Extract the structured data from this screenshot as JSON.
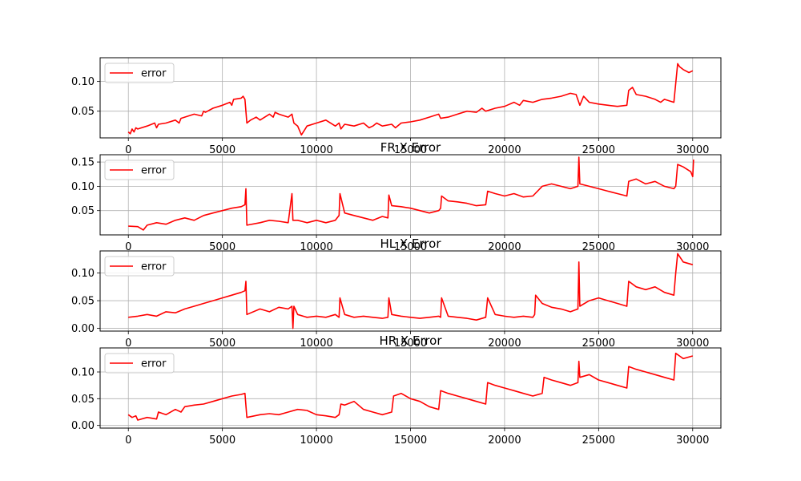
{
  "colors": {
    "series": "#ff0000",
    "grid": "#b0b0b0",
    "axes": "#000000",
    "legend_border": "#cccccc"
  },
  "chart_data": [
    {
      "type": "line",
      "title": "",
      "xlim": [
        -1500,
        31500
      ],
      "ylim": [
        0.005,
        0.14
      ],
      "xticks": [
        0,
        5000,
        10000,
        15000,
        20000,
        25000,
        30000
      ],
      "yticks": [
        0.05,
        0.1
      ],
      "ytick_labels": [
        "0.05",
        "0.10"
      ],
      "grid": true,
      "legend": {
        "placement": "upper-left",
        "entries": [
          "error"
        ]
      },
      "series": [
        {
          "name": "error",
          "x": [
            0,
            100,
            200,
            300,
            400,
            500,
            1000,
            1400,
            1500,
            1600,
            2000,
            2500,
            2700,
            2800,
            3000,
            3500,
            3900,
            4000,
            4100,
            4500,
            5000,
            5400,
            5500,
            5600,
            6000,
            6100,
            6200,
            6300,
            6500,
            6800,
            7000,
            7500,
            7700,
            7800,
            8000,
            8500,
            8700,
            8800,
            9000,
            9200,
            9400,
            9500,
            10000,
            10500,
            11000,
            11200,
            11300,
            11500,
            12000,
            12500,
            12800,
            13000,
            13200,
            13500,
            14000,
            14200,
            14500,
            15000,
            15500,
            16000,
            16500,
            16600,
            17000,
            17500,
            18000,
            18500,
            18800,
            19000,
            19500,
            20000,
            20500,
            20800,
            21000,
            21500,
            22000,
            22500,
            23000,
            23500,
            23800,
            24000,
            24200,
            24500,
            25000,
            25500,
            26000,
            26500,
            26600,
            26800,
            27000,
            27500,
            28000,
            28300,
            28500,
            29000,
            29200,
            29300,
            29500,
            29800,
            30000
          ],
          "y": [
            0.015,
            0.012,
            0.02,
            0.015,
            0.022,
            0.02,
            0.025,
            0.03,
            0.022,
            0.028,
            0.03,
            0.035,
            0.03,
            0.038,
            0.04,
            0.045,
            0.042,
            0.05,
            0.048,
            0.055,
            0.06,
            0.065,
            0.06,
            0.07,
            0.072,
            0.075,
            0.07,
            0.03,
            0.035,
            0.04,
            0.035,
            0.045,
            0.04,
            0.048,
            0.045,
            0.04,
            0.045,
            0.03,
            0.025,
            0.01,
            0.02,
            0.025,
            0.03,
            0.035,
            0.025,
            0.03,
            0.02,
            0.028,
            0.025,
            0.03,
            0.022,
            0.025,
            0.03,
            0.025,
            0.028,
            0.022,
            0.03,
            0.032,
            0.035,
            0.04,
            0.045,
            0.038,
            0.04,
            0.045,
            0.05,
            0.048,
            0.055,
            0.05,
            0.055,
            0.058,
            0.065,
            0.06,
            0.068,
            0.065,
            0.07,
            0.072,
            0.075,
            0.08,
            0.078,
            0.06,
            0.075,
            0.065,
            0.062,
            0.06,
            0.058,
            0.06,
            0.085,
            0.09,
            0.078,
            0.075,
            0.07,
            0.065,
            0.07,
            0.065,
            0.13,
            0.125,
            0.12,
            0.115,
            0.118
          ]
        }
      ]
    },
    {
      "type": "line",
      "title": "FR X Error",
      "xlim": [
        -1500,
        31500
      ],
      "ylim": [
        0.0,
        0.165
      ],
      "xticks": [
        0,
        5000,
        10000,
        15000,
        20000,
        25000,
        30000
      ],
      "yticks": [
        0.05,
        0.1,
        0.15
      ],
      "ytick_labels": [
        "0.05",
        "0.10",
        "0.15"
      ],
      "grid": true,
      "legend": {
        "placement": "upper-left",
        "entries": [
          "error"
        ]
      },
      "series": [
        {
          "name": "error",
          "x": [
            0,
            500,
            800,
            1000,
            1500,
            2000,
            2500,
            3000,
            3500,
            4000,
            4500,
            5000,
            5500,
            6000,
            6200,
            6250,
            6300,
            7000,
            7500,
            8000,
            8500,
            8700,
            8750,
            9000,
            9500,
            10000,
            10500,
            11000,
            11200,
            11250,
            11500,
            12000,
            12500,
            13000,
            13500,
            13800,
            13850,
            14000,
            14500,
            15000,
            15500,
            16000,
            16500,
            16600,
            16650,
            17000,
            17500,
            18000,
            18500,
            19000,
            19100,
            19500,
            20000,
            20500,
            21000,
            21500,
            22000,
            22500,
            23000,
            23500,
            23900,
            23950,
            24000,
            24500,
            25000,
            25500,
            26000,
            26500,
            26600,
            27000,
            27500,
            28000,
            28500,
            29000,
            29100,
            29200,
            29500,
            29900,
            30000,
            30050
          ],
          "y": [
            0.018,
            0.017,
            0.01,
            0.02,
            0.025,
            0.022,
            0.03,
            0.035,
            0.03,
            0.04,
            0.045,
            0.05,
            0.055,
            0.058,
            0.062,
            0.095,
            0.02,
            0.025,
            0.03,
            0.028,
            0.025,
            0.085,
            0.03,
            0.03,
            0.025,
            0.03,
            0.025,
            0.03,
            0.04,
            0.085,
            0.045,
            0.04,
            0.035,
            0.03,
            0.038,
            0.035,
            0.082,
            0.06,
            0.058,
            0.055,
            0.05,
            0.045,
            0.05,
            0.055,
            0.08,
            0.07,
            0.068,
            0.065,
            0.06,
            0.062,
            0.09,
            0.085,
            0.08,
            0.085,
            0.078,
            0.08,
            0.1,
            0.105,
            0.1,
            0.095,
            0.1,
            0.16,
            0.105,
            0.1,
            0.095,
            0.09,
            0.085,
            0.08,
            0.11,
            0.115,
            0.105,
            0.11,
            0.1,
            0.095,
            0.1,
            0.145,
            0.14,
            0.13,
            0.12,
            0.155
          ]
        }
      ]
    },
    {
      "type": "line",
      "title": "HL X Error",
      "xlim": [
        -1500,
        31500
      ],
      "ylim": [
        -0.005,
        0.14
      ],
      "xticks": [
        0,
        5000,
        10000,
        15000,
        20000,
        25000,
        30000
      ],
      "yticks": [
        0.0,
        0.05,
        0.1
      ],
      "ytick_labels": [
        "0.00",
        "0.05",
        "0.10"
      ],
      "grid": true,
      "legend": {
        "placement": "upper-left",
        "entries": [
          "error"
        ]
      },
      "series": [
        {
          "name": "error",
          "x": [
            0,
            500,
            1000,
            1500,
            2000,
            2500,
            3000,
            3500,
            4000,
            4500,
            5000,
            5500,
            6000,
            6200,
            6250,
            6300,
            7000,
            7500,
            8000,
            8500,
            8700,
            8750,
            8800,
            9000,
            9500,
            10000,
            10500,
            11000,
            11200,
            11250,
            11500,
            12000,
            12500,
            13000,
            13500,
            13800,
            13850,
            14000,
            14500,
            15000,
            15500,
            16000,
            16500,
            16600,
            16650,
            17000,
            17500,
            18000,
            18500,
            19000,
            19100,
            19500,
            20000,
            20500,
            21000,
            21500,
            21600,
            21650,
            22000,
            22500,
            23000,
            23500,
            23900,
            23950,
            24000,
            24500,
            25000,
            25500,
            26000,
            26500,
            26600,
            27000,
            27500,
            28000,
            28500,
            29000,
            29100,
            29200,
            29500,
            30000
          ],
          "y": [
            0.02,
            0.022,
            0.025,
            0.022,
            0.03,
            0.028,
            0.035,
            0.04,
            0.045,
            0.05,
            0.055,
            0.06,
            0.065,
            0.068,
            0.085,
            0.025,
            0.035,
            0.03,
            0.038,
            0.035,
            0.04,
            0.0,
            0.04,
            0.025,
            0.02,
            0.022,
            0.02,
            0.025,
            0.02,
            0.055,
            0.025,
            0.02,
            0.022,
            0.02,
            0.018,
            0.02,
            0.055,
            0.025,
            0.022,
            0.02,
            0.018,
            0.02,
            0.022,
            0.02,
            0.055,
            0.022,
            0.02,
            0.018,
            0.015,
            0.02,
            0.055,
            0.025,
            0.022,
            0.02,
            0.022,
            0.02,
            0.025,
            0.06,
            0.045,
            0.038,
            0.035,
            0.03,
            0.035,
            0.12,
            0.04,
            0.05,
            0.055,
            0.05,
            0.045,
            0.04,
            0.085,
            0.075,
            0.07,
            0.075,
            0.065,
            0.06,
            0.1,
            0.135,
            0.12,
            0.115
          ]
        }
      ]
    },
    {
      "type": "line",
      "title": "HR X Error",
      "xlim": [
        -1500,
        31500
      ],
      "ylim": [
        -0.005,
        0.145
      ],
      "xticks": [
        0,
        5000,
        10000,
        15000,
        20000,
        25000,
        30000
      ],
      "yticks": [
        0.0,
        0.05,
        0.1
      ],
      "ytick_labels": [
        "0.00",
        "0.05",
        "0.10"
      ],
      "grid": true,
      "legend": {
        "placement": "upper-left",
        "entries": [
          "error"
        ]
      },
      "series": [
        {
          "name": "error",
          "x": [
            0,
            200,
            400,
            500,
            1000,
            1500,
            1600,
            2000,
            2500,
            2800,
            3000,
            3500,
            4000,
            4500,
            5000,
            5500,
            6000,
            6200,
            6300,
            7000,
            7500,
            8000,
            8500,
            9000,
            9500,
            10000,
            10500,
            11000,
            11200,
            11300,
            11500,
            12000,
            12500,
            13000,
            13500,
            14000,
            14100,
            14500,
            15000,
            15500,
            16000,
            16500,
            16600,
            17000,
            17500,
            18000,
            18500,
            19000,
            19100,
            19500,
            20000,
            20500,
            21000,
            21500,
            22000,
            22100,
            22500,
            23000,
            23500,
            23900,
            23950,
            24000,
            24500,
            25000,
            25500,
            26000,
            26500,
            26600,
            27000,
            27500,
            28000,
            28500,
            29000,
            29100,
            29300,
            29500,
            30000
          ],
          "y": [
            0.02,
            0.015,
            0.018,
            0.01,
            0.015,
            0.012,
            0.025,
            0.02,
            0.03,
            0.025,
            0.035,
            0.038,
            0.04,
            0.045,
            0.05,
            0.055,
            0.058,
            0.06,
            0.015,
            0.02,
            0.022,
            0.02,
            0.025,
            0.03,
            0.028,
            0.02,
            0.018,
            0.015,
            0.02,
            0.04,
            0.038,
            0.045,
            0.03,
            0.025,
            0.02,
            0.025,
            0.055,
            0.06,
            0.05,
            0.045,
            0.035,
            0.03,
            0.065,
            0.06,
            0.055,
            0.05,
            0.045,
            0.04,
            0.08,
            0.075,
            0.07,
            0.065,
            0.06,
            0.055,
            0.06,
            0.09,
            0.085,
            0.08,
            0.075,
            0.08,
            0.12,
            0.09,
            0.095,
            0.085,
            0.08,
            0.075,
            0.07,
            0.11,
            0.105,
            0.1,
            0.095,
            0.09,
            0.085,
            0.135,
            0.13,
            0.125,
            0.13
          ]
        }
      ]
    }
  ]
}
